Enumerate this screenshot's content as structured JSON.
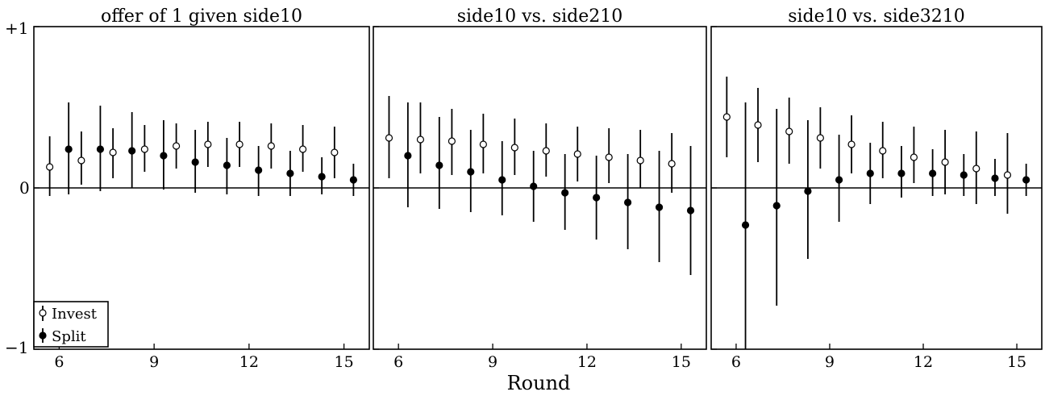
{
  "figure": {
    "xlabel": "Round",
    "ytick_labels": [
      "+1",
      "0",
      "−1"
    ]
  },
  "legend": {
    "items": [
      {
        "label": "Invest",
        "marker": "open-circle"
      },
      {
        "label": "Split",
        "marker": "filled-circle"
      }
    ],
    "placement": "bottom-left of first panel"
  },
  "chart_data": [
    {
      "type": "scatter",
      "title": "offer of 1 given side10",
      "xlabel": "",
      "ylabel": "",
      "xlim": [
        5.2,
        15.8
      ],
      "ylim": [
        -1,
        1
      ],
      "xticks": [
        6,
        9,
        12,
        15
      ],
      "yticks": [
        1,
        0,
        -1
      ],
      "reference_line": 0,
      "error_bars": true,
      "legend": "bottom-left",
      "series": [
        {
          "name": "Invest",
          "marker": "open-circle",
          "x": [
            6,
            7,
            8,
            9,
            10,
            11,
            12,
            13,
            14,
            15
          ],
          "y": [
            0.13,
            0.17,
            0.22,
            0.24,
            0.26,
            0.27,
            0.27,
            0.26,
            0.24,
            0.22
          ],
          "lo": [
            -0.05,
            0.02,
            0.06,
            0.1,
            0.12,
            0.13,
            0.13,
            0.12,
            0.1,
            0.06
          ],
          "hi": [
            0.32,
            0.35,
            0.37,
            0.39,
            0.4,
            0.41,
            0.41,
            0.4,
            0.39,
            0.38
          ]
        },
        {
          "name": "Split",
          "marker": "filled-circle",
          "x": [
            6,
            7,
            8,
            9,
            10,
            11,
            12,
            13,
            14,
            15
          ],
          "y": [
            0.24,
            0.24,
            0.23,
            0.2,
            0.16,
            0.14,
            0.11,
            0.09,
            0.07,
            0.05
          ],
          "lo": [
            -0.04,
            -0.02,
            0.0,
            -0.01,
            -0.03,
            -0.04,
            -0.05,
            -0.05,
            -0.04,
            -0.05
          ],
          "hi": [
            0.53,
            0.51,
            0.47,
            0.42,
            0.36,
            0.31,
            0.26,
            0.23,
            0.19,
            0.15
          ]
        }
      ]
    },
    {
      "type": "scatter",
      "title": "side10 vs. side210",
      "xlabel": "",
      "ylabel": "",
      "xlim": [
        5.2,
        15.8
      ],
      "ylim": [
        -1,
        1
      ],
      "xticks": [
        6,
        9,
        12,
        15
      ],
      "yticks": [
        1,
        0,
        -1
      ],
      "reference_line": 0,
      "error_bars": true,
      "series": [
        {
          "name": "Invest",
          "marker": "open-circle",
          "x": [
            6,
            7,
            8,
            9,
            10,
            11,
            12,
            13,
            14,
            15
          ],
          "y": [
            0.31,
            0.3,
            0.29,
            0.27,
            0.25,
            0.23,
            0.21,
            0.19,
            0.17,
            0.15
          ],
          "lo": [
            0.06,
            0.09,
            0.08,
            0.09,
            0.08,
            0.07,
            0.04,
            0.03,
            0.0,
            -0.03
          ],
          "hi": [
            0.57,
            0.53,
            0.49,
            0.46,
            0.43,
            0.4,
            0.38,
            0.37,
            0.36,
            0.34
          ]
        },
        {
          "name": "Split",
          "marker": "filled-circle",
          "x": [
            6,
            7,
            8,
            9,
            10,
            11,
            12,
            13,
            14,
            15
          ],
          "y": [
            0.2,
            0.14,
            0.1,
            0.05,
            0.01,
            -0.03,
            -0.06,
            -0.09,
            -0.12,
            -0.14
          ],
          "lo": [
            -0.12,
            -0.13,
            -0.15,
            -0.17,
            -0.21,
            -0.26,
            -0.32,
            -0.38,
            -0.46,
            -0.54
          ],
          "hi": [
            0.53,
            0.44,
            0.36,
            0.29,
            0.23,
            0.21,
            0.2,
            0.21,
            0.23,
            0.26
          ]
        }
      ]
    },
    {
      "type": "scatter",
      "title": "side10 vs. side3210",
      "xlabel": "",
      "ylabel": "",
      "xlim": [
        5.2,
        15.8
      ],
      "ylim": [
        -1,
        1
      ],
      "xticks": [
        6,
        9,
        12,
        15
      ],
      "yticks": [
        1,
        0,
        -1
      ],
      "reference_line": 0,
      "error_bars": true,
      "series": [
        {
          "name": "Invest",
          "marker": "open-circle",
          "x": [
            6,
            7,
            8,
            9,
            10,
            11,
            12,
            13,
            14,
            15
          ],
          "y": [
            0.44,
            0.39,
            0.35,
            0.31,
            0.27,
            0.23,
            0.19,
            0.16,
            0.12,
            0.08
          ],
          "lo": [
            0.19,
            0.16,
            0.15,
            0.12,
            0.09,
            0.06,
            0.03,
            -0.04,
            -0.1,
            -0.16
          ],
          "hi": [
            0.69,
            0.62,
            0.56,
            0.5,
            0.45,
            0.41,
            0.38,
            0.36,
            0.35,
            0.34
          ]
        },
        {
          "name": "Split",
          "marker": "filled-circle",
          "x": [
            6,
            7,
            8,
            9,
            10,
            11,
            12,
            13,
            14,
            15
          ],
          "y": [
            -0.23,
            -0.11,
            -0.02,
            0.05,
            0.09,
            0.09,
            0.09,
            0.08,
            0.06,
            0.05
          ],
          "lo": [
            -1.0,
            -0.73,
            -0.44,
            -0.21,
            -0.1,
            -0.06,
            -0.05,
            -0.05,
            -0.05,
            -0.05
          ],
          "hi": [
            0.53,
            0.49,
            0.42,
            0.33,
            0.28,
            0.26,
            0.24,
            0.21,
            0.18,
            0.15
          ]
        }
      ]
    }
  ]
}
